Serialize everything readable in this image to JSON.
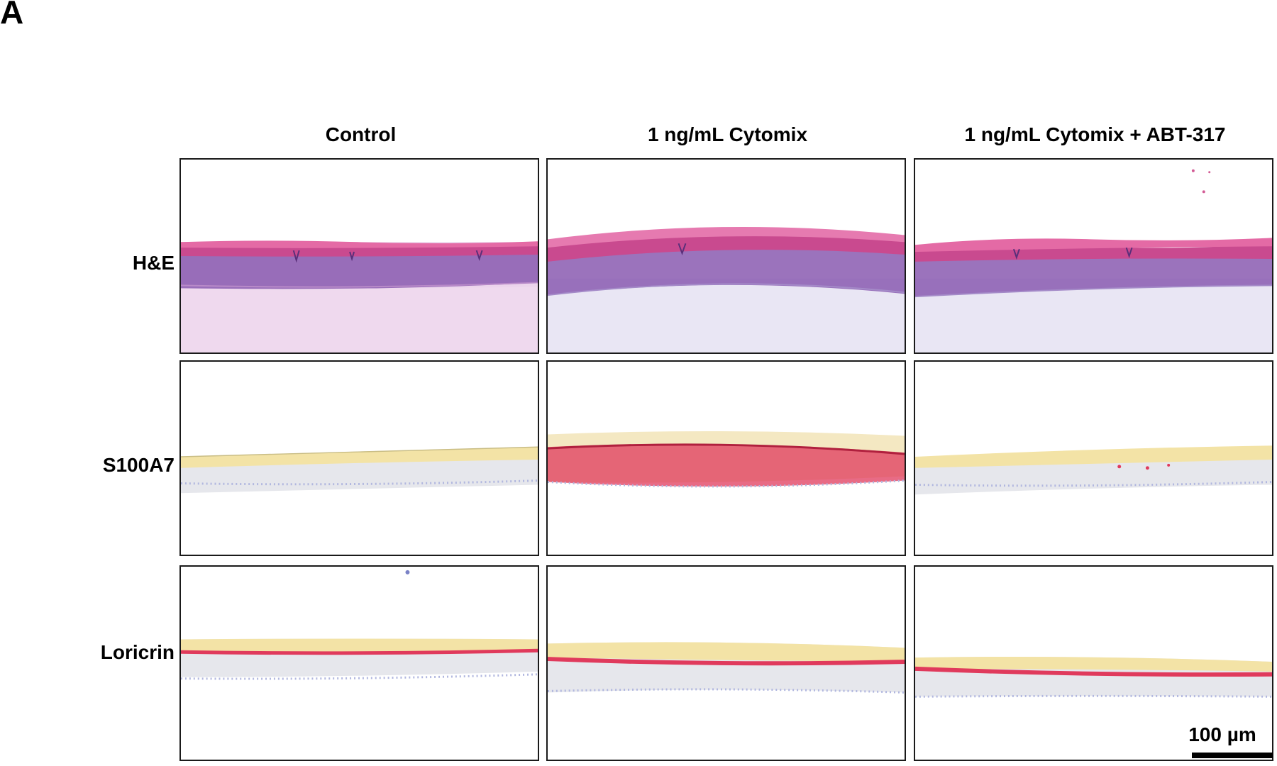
{
  "panel": {
    "letter": "A"
  },
  "columns": [
    {
      "label": "Control"
    },
    {
      "label": "1 ng/mL Cytomix"
    },
    {
      "label": "1 ng/mL Cytomix + ABT-317"
    }
  ],
  "rows": [
    {
      "label": "H&E"
    },
    {
      "label": "S100A7"
    },
    {
      "label": "Loricrin"
    }
  ],
  "scale_bar": {
    "label": "100 µm"
  },
  "stain_colors": {
    "he_cornified": "#d94a8c",
    "he_epidermis": "#8a5ab0",
    "he_dermis": "#efd9ee",
    "he_dermis_blue": "#e6e3f3",
    "ihc_corneum": "#f3e3a6",
    "ihc_epidermis": "#e6e7ec",
    "ihc_positive": "#e03a5c",
    "ihc_nuclei": "#9aa3d4"
  }
}
